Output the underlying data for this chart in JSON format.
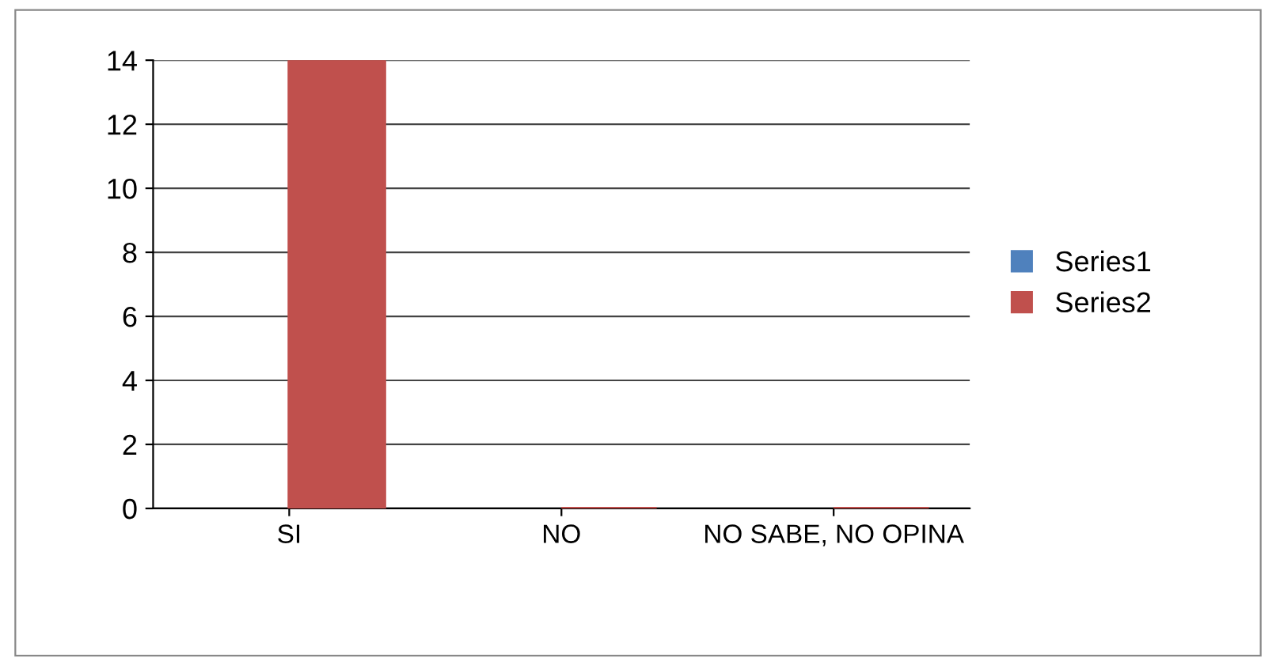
{
  "chart_data": {
    "type": "bar",
    "categories": [
      "SI",
      "NO",
      "NO SABE, NO OPINA"
    ],
    "series": [
      {
        "name": "Series1",
        "color": "#4f81bd",
        "values": [
          null,
          null,
          null
        ]
      },
      {
        "name": "Series2",
        "color": "#c0504d",
        "values": [
          14,
          0,
          0
        ]
      }
    ],
    "ylim": [
      0,
      14
    ],
    "yticks": [
      0,
      2,
      4,
      6,
      8,
      10,
      12,
      14
    ],
    "grid": "y",
    "legend": "right"
  }
}
